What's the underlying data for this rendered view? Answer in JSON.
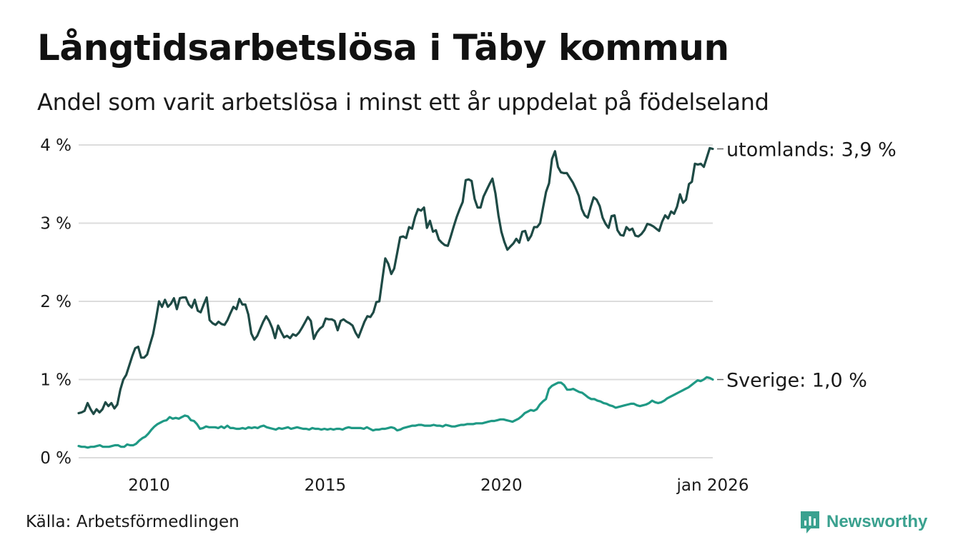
{
  "title": "Långtidsarbetslösa i Täby kommun",
  "subtitle": "Andel som varit arbetslösa i minst ett år uppdelat på födelseland",
  "source": "Källa: Arbetsförmedlingen",
  "brand": "Newsworthy",
  "colors": {
    "utomlands": "#1e4a45",
    "sverige": "#1f9985",
    "grid": "#dcdcdc",
    "brand": "#3aa18f"
  },
  "chart_data": {
    "type": "line",
    "x_start": 2008.0,
    "x_step": 0.08333,
    "x_end": 2026.0,
    "ylim": [
      0,
      4
    ],
    "yticks": [
      {
        "value": 0,
        "label": "0 %"
      },
      {
        "value": 1,
        "label": "1 %"
      },
      {
        "value": 2,
        "label": "2 %"
      },
      {
        "value": 3,
        "label": "3 %"
      },
      {
        "value": 4,
        "label": "4 %"
      }
    ],
    "xticks": [
      {
        "value": 2010,
        "label": "2010"
      },
      {
        "value": 2015,
        "label": "2015"
      },
      {
        "value": 2020,
        "label": "2020"
      },
      {
        "value": 2026,
        "label": "jan 2026"
      }
    ],
    "series": [
      {
        "name": "utomlands",
        "end_label": "utomlands: 3,9 %",
        "values": [
          0.57,
          0.58,
          0.6,
          0.7,
          0.62,
          0.56,
          0.62,
          0.58,
          0.62,
          0.71,
          0.66,
          0.7,
          0.63,
          0.68,
          0.87,
          1.0,
          1.06,
          1.18,
          1.3,
          1.4,
          1.42,
          1.28,
          1.28,
          1.32,
          1.45,
          1.58,
          1.78,
          2.0,
          1.93,
          2.02,
          1.93,
          1.97,
          2.04,
          1.9,
          2.04,
          2.05,
          2.05,
          1.96,
          1.92,
          2.02,
          1.88,
          1.86,
          1.96,
          2.05,
          1.76,
          1.72,
          1.7,
          1.74,
          1.71,
          1.7,
          1.76,
          1.85,
          1.93,
          1.9,
          2.03,
          1.96,
          1.96,
          1.83,
          1.59,
          1.51,
          1.56,
          1.65,
          1.74,
          1.81,
          1.75,
          1.66,
          1.53,
          1.69,
          1.61,
          1.54,
          1.56,
          1.53,
          1.58,
          1.56,
          1.6,
          1.66,
          1.73,
          1.8,
          1.75,
          1.52,
          1.6,
          1.65,
          1.68,
          1.78,
          1.77,
          1.77,
          1.75,
          1.63,
          1.75,
          1.77,
          1.74,
          1.72,
          1.69,
          1.6,
          1.54,
          1.64,
          1.74,
          1.81,
          1.8,
          1.86,
          1.99,
          2.0,
          2.28,
          2.55,
          2.48,
          2.35,
          2.42,
          2.62,
          2.82,
          2.83,
          2.81,
          2.95,
          2.93,
          3.08,
          3.18,
          3.16,
          3.2,
          2.94,
          3.03,
          2.89,
          2.91,
          2.79,
          2.75,
          2.72,
          2.71,
          2.83,
          2.96,
          3.08,
          3.18,
          3.27,
          3.55,
          3.56,
          3.54,
          3.31,
          3.2,
          3.2,
          3.34,
          3.42,
          3.5,
          3.57,
          3.38,
          3.1,
          2.89,
          2.76,
          2.66,
          2.7,
          2.74,
          2.8,
          2.75,
          2.89,
          2.9,
          2.78,
          2.84,
          2.95,
          2.95,
          3.0,
          3.2,
          3.4,
          3.51,
          3.82,
          3.92,
          3.72,
          3.65,
          3.64,
          3.64,
          3.58,
          3.52,
          3.44,
          3.35,
          3.18,
          3.1,
          3.07,
          3.21,
          3.33,
          3.3,
          3.22,
          3.07,
          2.99,
          2.94,
          3.09,
          3.1,
          2.91,
          2.85,
          2.84,
          2.95,
          2.91,
          2.93,
          2.84,
          2.83,
          2.86,
          2.91,
          2.99,
          2.98,
          2.96,
          2.93,
          2.9,
          3.02,
          3.1,
          3.06,
          3.15,
          3.12,
          3.21,
          3.37,
          3.26,
          3.3,
          3.5,
          3.53,
          3.76,
          3.75,
          3.76,
          3.72,
          3.84,
          3.96,
          3.95
        ]
      },
      {
        "name": "Sverige",
        "end_label": "Sverige: 1,0 %",
        "values": [
          0.15,
          0.14,
          0.14,
          0.13,
          0.14,
          0.14,
          0.15,
          0.16,
          0.14,
          0.14,
          0.14,
          0.15,
          0.16,
          0.16,
          0.14,
          0.14,
          0.17,
          0.16,
          0.16,
          0.18,
          0.22,
          0.25,
          0.27,
          0.31,
          0.36,
          0.4,
          0.43,
          0.45,
          0.47,
          0.48,
          0.52,
          0.5,
          0.51,
          0.5,
          0.52,
          0.54,
          0.53,
          0.48,
          0.47,
          0.43,
          0.37,
          0.38,
          0.4,
          0.39,
          0.39,
          0.39,
          0.38,
          0.4,
          0.38,
          0.41,
          0.38,
          0.38,
          0.37,
          0.37,
          0.38,
          0.37,
          0.39,
          0.38,
          0.39,
          0.38,
          0.4,
          0.41,
          0.39,
          0.38,
          0.37,
          0.36,
          0.38,
          0.37,
          0.38,
          0.39,
          0.37,
          0.38,
          0.39,
          0.38,
          0.37,
          0.37,
          0.36,
          0.38,
          0.37,
          0.37,
          0.36,
          0.37,
          0.36,
          0.37,
          0.36,
          0.37,
          0.37,
          0.36,
          0.38,
          0.39,
          0.38,
          0.38,
          0.38,
          0.38,
          0.37,
          0.39,
          0.37,
          0.35,
          0.36,
          0.36,
          0.37,
          0.37,
          0.38,
          0.39,
          0.38,
          0.35,
          0.36,
          0.38,
          0.39,
          0.4,
          0.41,
          0.41,
          0.42,
          0.42,
          0.41,
          0.41,
          0.41,
          0.42,
          0.41,
          0.41,
          0.4,
          0.42,
          0.41,
          0.4,
          0.4,
          0.41,
          0.42,
          0.42,
          0.43,
          0.43,
          0.43,
          0.44,
          0.44,
          0.44,
          0.45,
          0.46,
          0.47,
          0.47,
          0.48,
          0.49,
          0.49,
          0.48,
          0.47,
          0.46,
          0.48,
          0.5,
          0.53,
          0.57,
          0.59,
          0.61,
          0.6,
          0.62,
          0.68,
          0.72,
          0.75,
          0.88,
          0.92,
          0.94,
          0.96,
          0.96,
          0.93,
          0.87,
          0.87,
          0.88,
          0.86,
          0.84,
          0.83,
          0.8,
          0.77,
          0.75,
          0.75,
          0.73,
          0.72,
          0.7,
          0.69,
          0.67,
          0.66,
          0.64,
          0.65,
          0.66,
          0.67,
          0.68,
          0.69,
          0.69,
          0.67,
          0.66,
          0.67,
          0.68,
          0.7,
          0.73,
          0.71,
          0.7,
          0.71,
          0.73,
          0.76,
          0.78,
          0.8,
          0.82,
          0.84,
          0.86,
          0.88,
          0.9,
          0.93,
          0.96,
          0.99,
          0.98,
          1.0,
          1.03,
          1.02,
          1.0
        ]
      }
    ]
  }
}
